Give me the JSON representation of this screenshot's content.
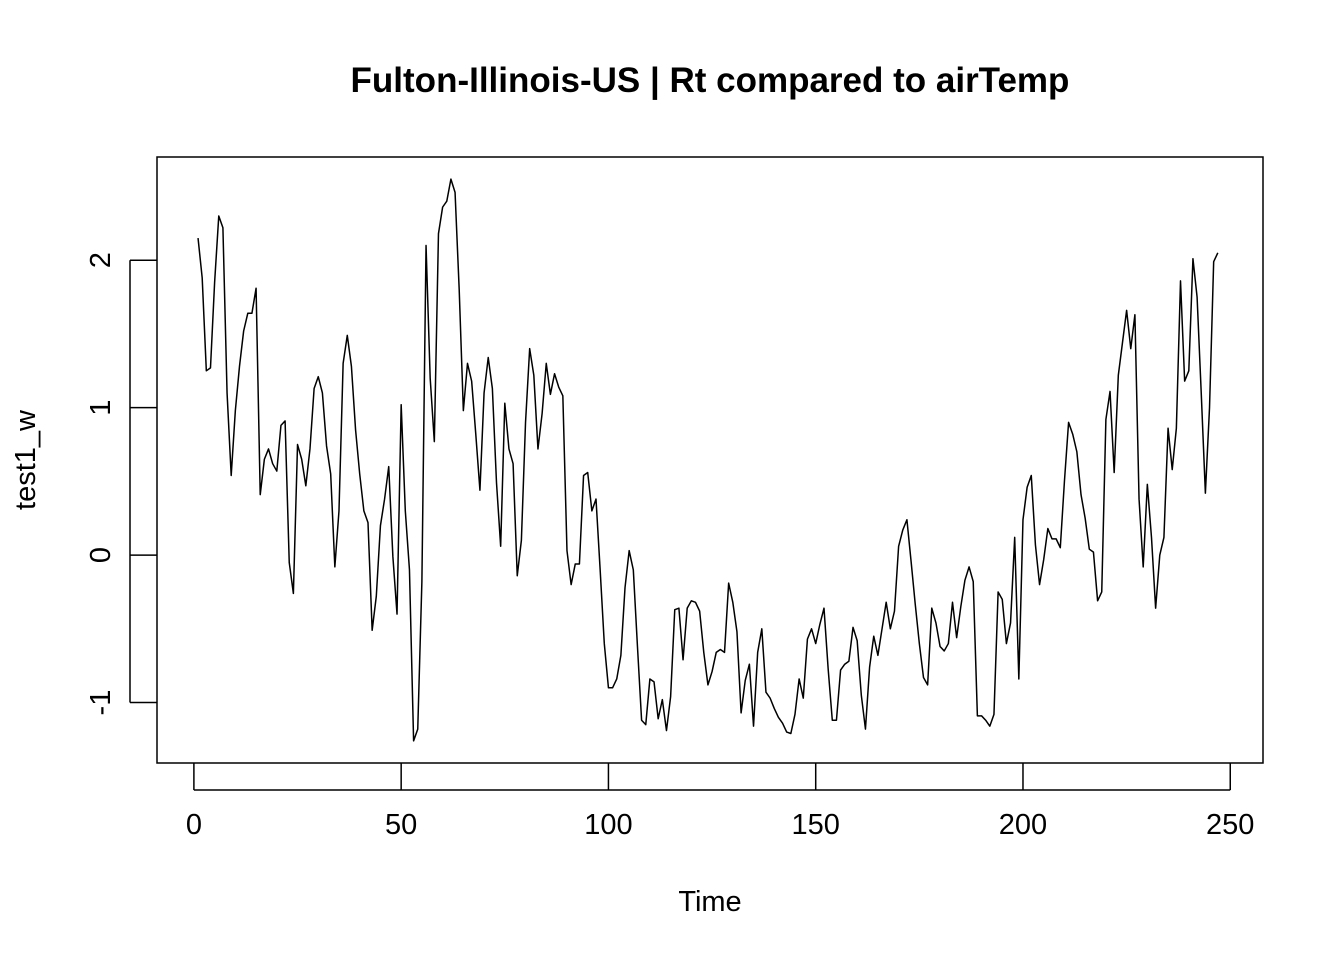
{
  "chart_data": {
    "type": "line",
    "title": "Fulton-Illinois-US | Rt compared to airTemp",
    "xlabel": "Time",
    "ylabel": "test1_w",
    "xlim": [
      -8.9,
      257.9
    ],
    "ylim": [
      -1.41,
      2.7
    ],
    "x_ticks": [
      0,
      50,
      100,
      150,
      200,
      250
    ],
    "y_ticks": [
      -1,
      0,
      1,
      2
    ],
    "x_tick_labels": [
      "0",
      "50",
      "100",
      "150",
      "200",
      "250"
    ],
    "y_tick_labels": [
      "-1",
      "0",
      "1",
      "2"
    ],
    "grid": false,
    "legend": "none",
    "line_color": "#000000",
    "series": [
      {
        "x_start": 1,
        "values": [
          2.15,
          1.88,
          1.25,
          1.27,
          1.85,
          2.3,
          2.22,
          1.1,
          0.54,
          0.98,
          1.28,
          1.52,
          1.64,
          1.64,
          1.81,
          0.41,
          0.65,
          0.72,
          0.62,
          0.57,
          0.88,
          0.91,
          -0.05,
          -0.26,
          0.75,
          0.65,
          0.47,
          0.72,
          1.13,
          1.21,
          1.1,
          0.74,
          0.55,
          -0.08,
          0.3,
          1.3,
          1.49,
          1.28,
          0.85,
          0.55,
          0.3,
          0.22,
          -0.51,
          -0.28,
          0.2,
          0.38,
          0.6,
          -0.01,
          -0.4,
          1.02,
          0.3,
          -0.1,
          -1.26,
          -1.18,
          -0.18,
          2.1,
          1.2,
          0.77,
          2.18,
          2.36,
          2.4,
          2.55,
          2.46,
          1.8,
          0.98,
          1.3,
          1.18,
          0.82,
          0.44,
          1.1,
          1.34,
          1.13,
          0.49,
          0.06,
          1.03,
          0.72,
          0.62,
          -0.14,
          0.1,
          0.9,
          1.4,
          1.22,
          0.72,
          0.96,
          1.3,
          1.09,
          1.23,
          1.14,
          1.08,
          0.03,
          -0.2,
          -0.06,
          -0.06,
          0.54,
          0.56,
          0.3,
          0.38,
          -0.1,
          -0.6,
          -0.9,
          -0.9,
          -0.84,
          -0.68,
          -0.22,
          0.03,
          -0.1,
          -0.62,
          -1.12,
          -1.15,
          -0.84,
          -0.86,
          -1.11,
          -0.98,
          -1.19,
          -0.96,
          -0.37,
          -0.36,
          -0.71,
          -0.36,
          -0.31,
          -0.32,
          -0.38,
          -0.66,
          -0.88,
          -0.79,
          -0.66,
          -0.64,
          -0.66,
          -0.19,
          -0.32,
          -0.52,
          -1.07,
          -0.85,
          -0.74,
          -1.16,
          -0.66,
          -0.5,
          -0.93,
          -0.97,
          -1.04,
          -1.1,
          -1.14,
          -1.2,
          -1.21,
          -1.08,
          -0.84,
          -0.97,
          -0.57,
          -0.5,
          -0.6,
          -0.47,
          -0.36,
          -0.77,
          -1.12,
          -1.12,
          -0.78,
          -0.74,
          -0.72,
          -0.49,
          -0.58,
          -0.95,
          -1.18,
          -0.76,
          -0.55,
          -0.68,
          -0.5,
          -0.32,
          -0.5,
          -0.38,
          0.06,
          0.17,
          0.24,
          -0.04,
          -0.33,
          -0.6,
          -0.83,
          -0.88,
          -0.36,
          -0.46,
          -0.62,
          -0.65,
          -0.6,
          -0.32,
          -0.56,
          -0.35,
          -0.17,
          -0.08,
          -0.18,
          -1.09,
          -1.09,
          -1.12,
          -1.16,
          -1.08,
          -0.25,
          -0.3,
          -0.6,
          -0.46,
          0.12,
          -0.84,
          0.24,
          0.46,
          0.54,
          0.07,
          -0.2,
          -0.03,
          0.18,
          0.11,
          0.11,
          0.05,
          0.5,
          0.9,
          0.82,
          0.7,
          0.41,
          0.25,
          0.04,
          0.02,
          -0.31,
          -0.25,
          0.92,
          1.11,
          0.56,
          1.22,
          1.44,
          1.66,
          1.4,
          1.63,
          0.38,
          -0.08,
          0.48,
          0.12,
          -0.36,
          0.0,
          0.12,
          0.86,
          0.58,
          0.86,
          1.86,
          1.18,
          1.25,
          2.01,
          1.75,
          1.1,
          0.42,
          1.0,
          1.99,
          2.05
        ]
      }
    ]
  }
}
